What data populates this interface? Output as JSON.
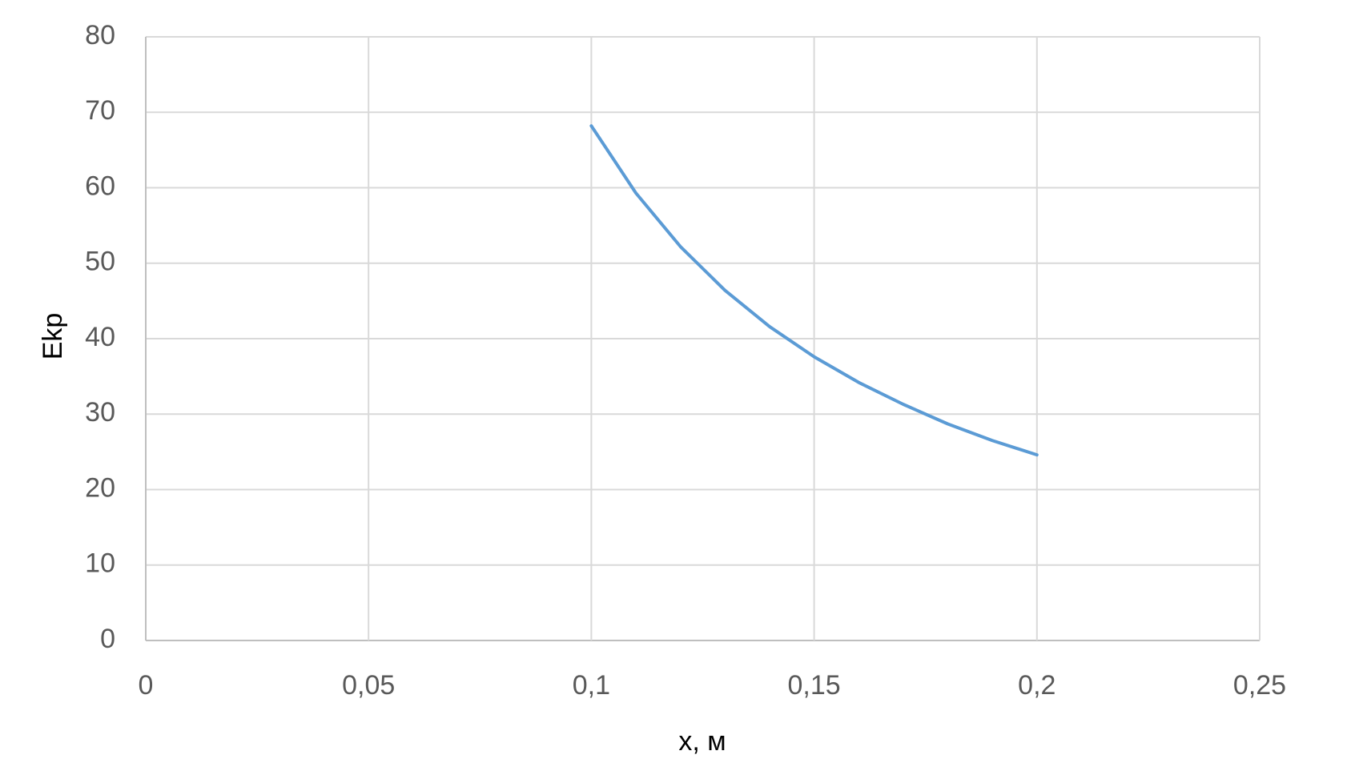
{
  "chart_data": {
    "type": "line",
    "x_label": "x, м",
    "y_label": "Ekp",
    "series": [
      {
        "color": "#5b9bd5",
        "x": [
          0.1,
          0.11,
          0.12,
          0.13,
          0.14,
          0.15,
          0.16,
          0.17,
          0.18,
          0.19,
          0.2
        ],
        "values": [
          68.2,
          59.3,
          52.2,
          46.4,
          41.6,
          37.6,
          34.2,
          31.3,
          28.7,
          26.5,
          24.6
        ]
      }
    ],
    "xlim": [
      0,
      0.25
    ],
    "xticks": [
      0,
      {
        "value": 0.05,
        "label": "0,05"
      },
      {
        "value": 0.1,
        "label": "0,1"
      },
      {
        "value": 0.15,
        "label": "0,15"
      },
      {
        "value": 0.2,
        "label": "0,2"
      },
      {
        "value": 0.25,
        "label": "0,25"
      }
    ],
    "ylim": [
      0,
      80
    ],
    "yticks": [
      0,
      10,
      20,
      30,
      40,
      50,
      60,
      70,
      80
    ],
    "grid": true
  }
}
